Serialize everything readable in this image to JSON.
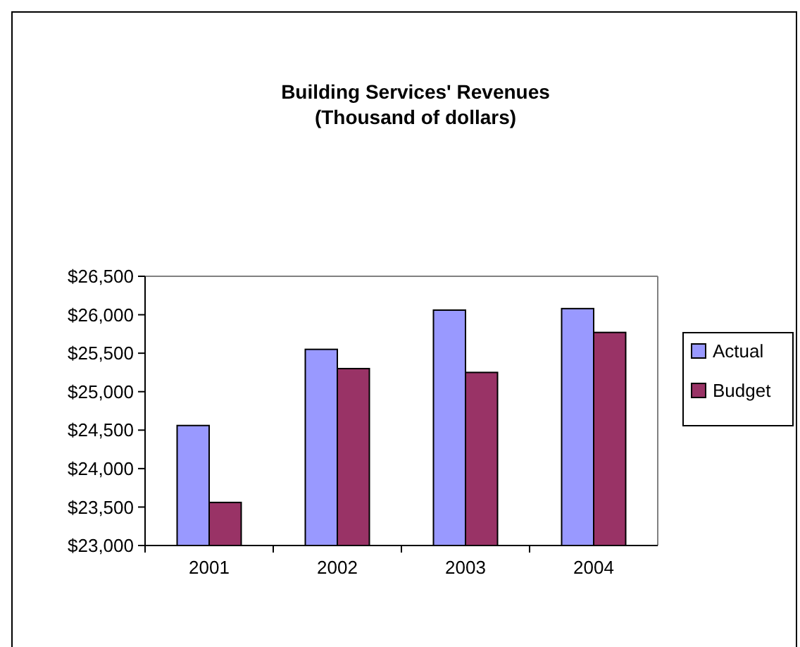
{
  "chart_data": {
    "type": "bar",
    "title": "Building Services' Revenues",
    "subtitle": "(Thousand of dollars)",
    "categories": [
      "2001",
      "2002",
      "2003",
      "2004"
    ],
    "series": [
      {
        "name": "Actual",
        "color": "#9999ff",
        "values": [
          24560,
          25550,
          26060,
          26080
        ]
      },
      {
        "name": "Budget",
        "color": "#993366",
        "values": [
          23560,
          25300,
          25250,
          25770
        ]
      }
    ],
    "ylim": [
      23000,
      26500
    ],
    "yticks": [
      {
        "value": 23000,
        "label": "$23,000"
      },
      {
        "value": 23500,
        "label": "$23,500"
      },
      {
        "value": 24000,
        "label": "$24,000"
      },
      {
        "value": 24500,
        "label": "$24,500"
      },
      {
        "value": 25000,
        "label": "$25,000"
      },
      {
        "value": 25500,
        "label": "$25,500"
      },
      {
        "value": 26000,
        "label": "$26,000"
      },
      {
        "value": 26500,
        "label": "$26,500"
      }
    ],
    "grid": false,
    "legend": "right"
  }
}
